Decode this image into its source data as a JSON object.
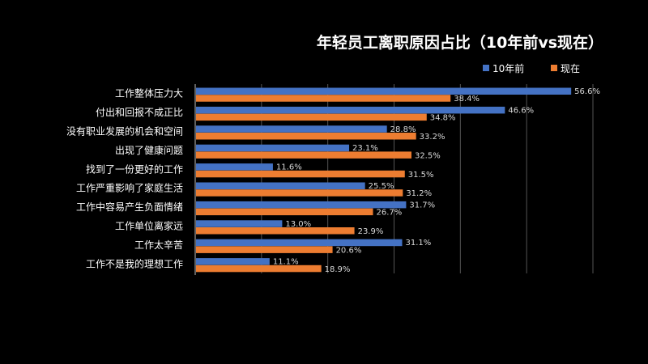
{
  "chart_data": {
    "type": "bar",
    "orientation": "horizontal",
    "title": "年轻员工离职原因占比（10年前vs现在）",
    "categories": [
      "工作整体压力大",
      "付出和回报不成正比",
      "没有职业发展的机会和空间",
      "出现了健康问题",
      "找到了一份更好的工作",
      "工作严重影响了家庭生活",
      "工作中容易产生负面情绪",
      "工作单位离家远",
      "工作太辛苦",
      "工作不是我的理想工作"
    ],
    "series": [
      {
        "name": "10年前",
        "color": "#4472C4",
        "values": [
          56.6,
          46.6,
          28.8,
          23.1,
          11.6,
          25.5,
          31.7,
          13.0,
          31.1,
          11.1
        ],
        "labels": [
          "56.6%",
          "46.6%",
          "28.8%",
          "23.1%",
          "11.6%",
          "25.5%",
          "31.7%",
          "13.0%",
          "31.1%",
          "11.1%"
        ]
      },
      {
        "name": "现在",
        "color": "#ED7D31",
        "values": [
          38.4,
          34.8,
          33.2,
          32.5,
          31.5,
          31.2,
          26.7,
          23.9,
          20.6,
          18.9
        ],
        "labels": [
          "38.4%",
          "34.8%",
          "33.2%",
          "32.5%",
          "31.5%",
          "31.2%",
          "26.7%",
          "23.9%",
          "20.6%",
          "18.9%"
        ]
      }
    ],
    "xlim": [
      0,
      60
    ],
    "grid": true,
    "legend_position": "top-right",
    "data_labels": true
  }
}
